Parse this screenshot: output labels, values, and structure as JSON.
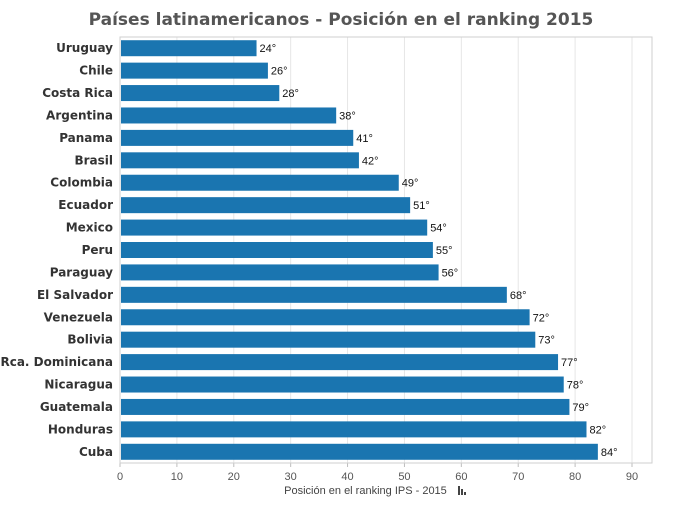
{
  "chart_data": {
    "type": "bar",
    "orientation": "horizontal",
    "title": "Países latinamericanos - Posición en el ranking 2015",
    "xlabel": "Posición en el ranking IPS - 2015",
    "ylabel": "",
    "xlim": [
      0,
      90
    ],
    "ticks": [
      "0",
      "10",
      "20",
      "30",
      "40",
      "50",
      "60",
      "70",
      "80",
      "90"
    ],
    "grid": true,
    "bar_color": "#1a75b0",
    "categories": [
      "Uruguay",
      "Chile",
      "Costa Rica",
      "Argentina",
      "Panama",
      "Brasil",
      "Colombia",
      "Ecuador",
      "Mexico",
      "Peru",
      "Paraguay",
      "El Salvador",
      "Venezuela",
      "Bolivia",
      "Rca. Dominicana",
      "Nicaragua",
      "Guatemala",
      "Honduras",
      "Cuba"
    ],
    "values": [
      24,
      26,
      28,
      38,
      41,
      42,
      49,
      51,
      54,
      55,
      56,
      68,
      72,
      73,
      77,
      78,
      79,
      82,
      84
    ],
    "data_labels": [
      "24°",
      "26°",
      "28°",
      "38°",
      "41°",
      "42°",
      "49°",
      "51°",
      "54°",
      "55°",
      "56°",
      "68°",
      "72°",
      "73°",
      "77°",
      "78°",
      "79°",
      "82°",
      "84°"
    ]
  }
}
